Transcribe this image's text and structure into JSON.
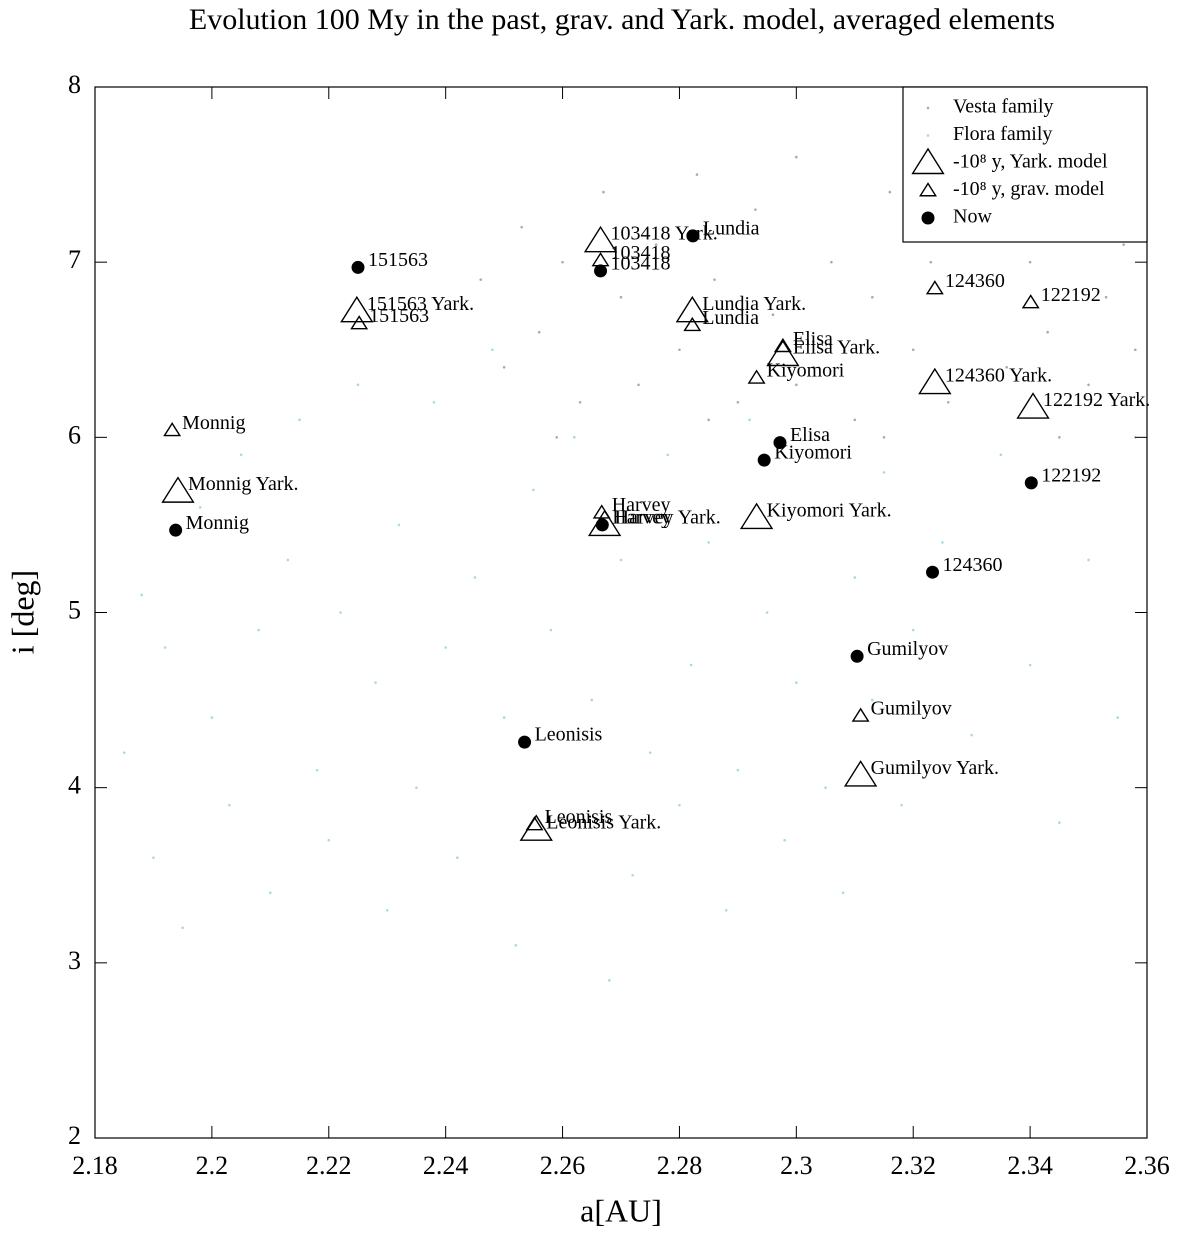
{
  "chart_data": {
    "type": "scatter",
    "title": "Evolution 100 My in the past, grav. and Yark. model, averaged elements",
    "x_label": "a[AU]",
    "y_label": "i [deg]",
    "xlim": [
      2.18,
      2.36
    ],
    "ylim": [
      2,
      8
    ],
    "xticks": [
      2.18,
      2.2,
      2.22,
      2.24,
      2.26,
      2.28,
      2.3,
      2.32,
      2.34,
      2.36
    ],
    "yticks": [
      2,
      3,
      4,
      5,
      6,
      7,
      8
    ],
    "legend": "top-right",
    "series": [
      {
        "name": "Vesta family",
        "color": "#aaaaaa",
        "marker": "dot",
        "x": [
          2.246,
          2.25,
          2.253,
          2.256,
          2.26,
          2.263,
          2.267,
          2.27,
          2.273,
          2.276,
          2.28,
          2.283,
          2.286,
          2.29,
          2.293,
          2.296,
          2.3,
          2.303,
          2.306,
          2.31,
          2.313,
          2.316,
          2.32,
          2.323,
          2.326,
          2.33,
          2.333,
          2.336,
          2.34,
          2.343,
          2.346,
          2.35,
          2.353,
          2.356,
          2.358,
          2.259,
          2.285,
          2.315,
          2.345,
          2.3
        ],
        "values": [
          6.9,
          6.4,
          7.2,
          6.6,
          7.0,
          6.2,
          7.4,
          6.8,
          6.3,
          7.1,
          6.5,
          7.5,
          6.9,
          6.2,
          7.3,
          6.7,
          7.6,
          6.4,
          7.0,
          6.1,
          6.8,
          7.4,
          6.5,
          7.0,
          6.2,
          6.9,
          7.3,
          6.4,
          7.0,
          6.6,
          7.2,
          6.3,
          6.8,
          7.1,
          6.5,
          6.0,
          6.1,
          6.0,
          6.0,
          6.3
        ]
      },
      {
        "name": "Flora family",
        "color": "#a8d8e8",
        "marker": "dot",
        "x": [
          2.185,
          2.188,
          2.19,
          2.192,
          2.195,
          2.198,
          2.2,
          2.203,
          2.205,
          2.208,
          2.21,
          2.213,
          2.215,
          2.218,
          2.22,
          2.222,
          2.225,
          2.228,
          2.23,
          2.232,
          2.235,
          2.238,
          2.24,
          2.242,
          2.245,
          2.248,
          2.25,
          2.252,
          2.255,
          2.258,
          2.26,
          2.262,
          2.265,
          2.268,
          2.27,
          2.272,
          2.275,
          2.278,
          2.28,
          2.282,
          2.285,
          2.288,
          2.29,
          2.292,
          2.295,
          2.298,
          2.3,
          2.303,
          2.305,
          2.308,
          2.31,
          2.313,
          2.315,
          2.318,
          2.32,
          2.325,
          2.33,
          2.335,
          2.34,
          2.345,
          2.35,
          2.355,
          2.358
        ],
        "values": [
          4.2,
          5.1,
          3.6,
          4.8,
          3.2,
          5.6,
          4.4,
          3.9,
          5.9,
          4.9,
          3.4,
          5.3,
          6.1,
          4.1,
          3.7,
          5.0,
          6.3,
          4.6,
          3.3,
          5.5,
          4.0,
          6.2,
          4.8,
          3.6,
          5.2,
          6.5,
          4.4,
          3.1,
          5.7,
          4.9,
          3.8,
          6.0,
          4.5,
          2.9,
          5.3,
          3.5,
          4.2,
          5.9,
          3.9,
          4.7,
          5.4,
          3.3,
          4.1,
          6.1,
          5.0,
          3.7,
          4.6,
          5.6,
          4.0,
          3.4,
          5.2,
          4.5,
          5.8,
          3.9,
          4.9,
          5.4,
          4.3,
          5.9,
          4.7,
          3.8,
          5.3,
          4.4,
          6.0
        ]
      },
      {
        "name": "-10⁸ y, Yark. model",
        "color": "#000000",
        "marker": "triangle-large",
        "x": [
          2.1942,
          2.2248,
          2.2665,
          2.2822,
          2.2672,
          2.2555,
          2.2977,
          2.2932,
          2.311,
          2.3237,
          2.3405
        ],
        "values": [
          5.69,
          6.72,
          7.12,
          6.72,
          5.5,
          3.76,
          6.47,
          5.54,
          4.07,
          6.31,
          6.17
        ],
        "labels": [
          "Monnig Yark.",
          "151563 Yark.",
          "103418 Yark.",
          "Lundia Yark.",
          "Harvey Yark.",
          "Leonisis Yark.",
          "Elisa Yark.",
          "Kiyomori Yark.",
          "Gumilyov Yark.",
          "124360 Yark.",
          "122192 Yark."
        ]
      },
      {
        "name": "-10⁸ y, grav. model",
        "color": "#000000",
        "marker": "triangle-small",
        "x": [
          2.1932,
          2.2252,
          2.2665,
          2.2822,
          2.2667,
          2.2552,
          2.2977,
          2.2932,
          2.311,
          2.3237,
          2.3401
        ],
        "values": [
          6.04,
          6.65,
          7.01,
          6.64,
          5.57,
          3.79,
          6.52,
          6.34,
          4.41,
          6.85,
          6.77
        ],
        "labels": [
          "Monnig",
          "151563",
          "103418",
          "Lundia",
          "Harvey",
          "Leonisis",
          "Elisa",
          "Kiyomori",
          "Gumilyov",
          "124360",
          "122192"
        ]
      },
      {
        "name": "Now",
        "color": "#000000",
        "marker": "circle",
        "x": [
          2.1938,
          2.225,
          2.2665,
          2.2823,
          2.2668,
          2.2535,
          2.2972,
          2.2945,
          2.3104,
          2.3233,
          2.3402
        ],
        "values": [
          5.47,
          6.97,
          6.95,
          7.15,
          5.5,
          4.26,
          5.97,
          5.87,
          4.75,
          5.23,
          5.74
        ],
        "labels": [
          "Monnig",
          "151563",
          "103418",
          "Lundia",
          "Harvey",
          "Leonisis",
          "Elisa",
          "Kiyomori",
          "Gumilyov",
          "124360",
          "122192"
        ]
      }
    ]
  }
}
